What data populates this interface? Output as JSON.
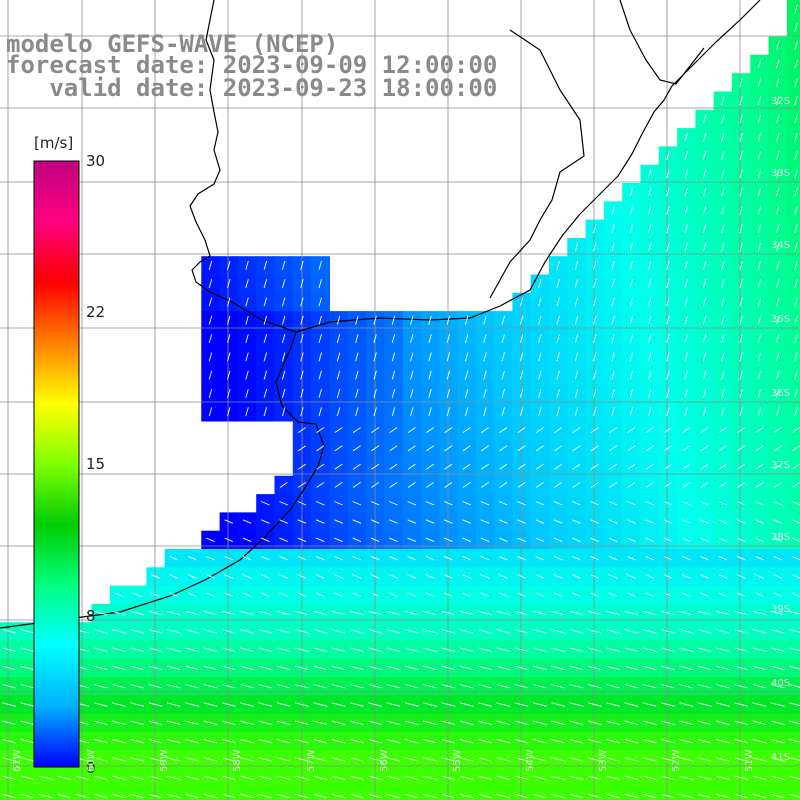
{
  "title": {
    "line1": "modelo GEFS-WAVE (NCEP)",
    "line2": "forecast date: 2023-09-09 12:00:00",
    "line3": "   valid date: 2023-09-23 18:00:00"
  },
  "colorbar": {
    "unit": "[m/s]",
    "ticks": [
      "30",
      "22",
      "15",
      "8",
      "0"
    ],
    "tick_values": [
      30,
      22,
      15,
      8,
      0
    ],
    "range": [
      0,
      30
    ],
    "stops": [
      "#0000ff",
      "#00b0ff",
      "#00ffff",
      "#00ff80",
      "#00cc00",
      "#80ff00",
      "#ffff00",
      "#ff8000",
      "#ff0000",
      "#ff0080",
      "#c00080"
    ]
  },
  "lat_labels": [
    "32S",
    "33S",
    "34S",
    "35S",
    "36S",
    "37S",
    "38S",
    "39S",
    "40S",
    "41S"
  ],
  "lon_labels": [
    "61W",
    "60W",
    "59W",
    "58W",
    "57W",
    "56W",
    "55W",
    "54W",
    "53W",
    "52W",
    "51W"
  ],
  "colors": {
    "land": "#ffffff",
    "grid": "#8c8c8c",
    "coast": "#000000",
    "arrow": "#ffffff",
    "title": "#8a8a8a"
  }
}
